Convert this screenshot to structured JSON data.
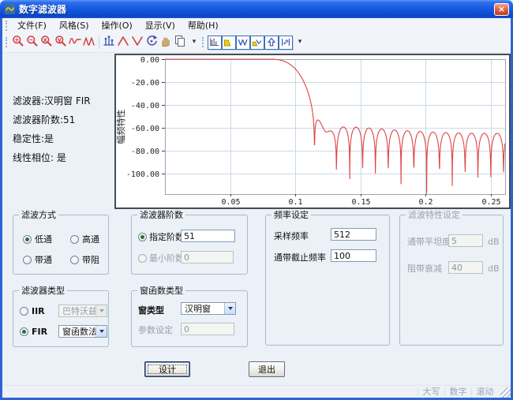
{
  "window": {
    "title": "数字滤波器",
    "close_glyph": "×"
  },
  "menu": {
    "items": [
      "文件(F)",
      "风格(S)",
      "操作(O)",
      "显示(V)",
      "帮助(H)"
    ]
  },
  "toolbar": {
    "group1": [
      {
        "name": "zoom-in"
      },
      {
        "name": "zoom-out"
      },
      {
        "name": "zoom-x"
      },
      {
        "name": "zoom-y"
      },
      {
        "name": "wave-cursor"
      },
      {
        "name": "wave-dual-cursor"
      },
      {
        "name": "stem-plot"
      },
      {
        "name": "peak-up"
      },
      {
        "name": "peak-down"
      },
      {
        "name": "rotate-view"
      },
      {
        "name": "pan-hand"
      },
      {
        "name": "copy-view"
      },
      {
        "name": "toolbar-more"
      }
    ],
    "group2": [
      {
        "name": "impulse-response"
      },
      {
        "name": "magnitude-response"
      },
      {
        "name": "phase-response"
      },
      {
        "name": "group-delay"
      },
      {
        "name": "export-up"
      },
      {
        "name": "coefficients"
      },
      {
        "name": "toolbar2-more"
      }
    ]
  },
  "info_panel": {
    "lines": [
      "滤波器:汉明窗 FIR",
      "滤波器阶数:51",
      "稳定性:是",
      "线性相位: 是"
    ]
  },
  "chart_data": {
    "type": "line",
    "title": "",
    "xlabel": "",
    "ylabel": "幅频特性",
    "x_ticks": [
      0.05,
      0.1,
      0.15,
      0.2,
      0.25
    ],
    "y_ticks": [
      0,
      -20,
      -40,
      -60,
      -80,
      -100
    ],
    "xlim": [
      0,
      0.261
    ],
    "ylim": [
      -118,
      0
    ],
    "grid": true,
    "line_color": "#e04343",
    "series": [
      {
        "name": "幅频特性(dB)",
        "description": "Magnitude response of order-51 Hamming-window FIR lowpass (fs=512 Hz, passband cutoff 100 Hz): flat at 0 dB to x≈0.095, steep transition x≈0.10-0.12, first stopband sidelobe ≈ -52 dB, lobe spacing ≈0.0098, lobe peaks decay to ≈ -75 dB at x=0.25, nulls reach -90 to -107 dB",
        "generator": {
          "taps": 52,
          "window": "hamming",
          "cutoff_axis": 0.0977,
          "axis_to_cycles": 2
        }
      }
    ]
  },
  "groups": {
    "filter_mode": {
      "title": "滤波方式",
      "options": [
        {
          "label": "低通",
          "selected": true
        },
        {
          "label": "高通",
          "selected": false
        },
        {
          "label": "带通",
          "selected": false
        },
        {
          "label": "带阻",
          "selected": false
        }
      ]
    },
    "filter_order": {
      "title": "滤波器阶数",
      "specified": {
        "label": "指定阶数",
        "selected": true,
        "value": "51"
      },
      "minimum": {
        "label": "最小阶数",
        "selected": false,
        "value": "0",
        "disabled": true
      }
    },
    "frequency": {
      "title": "频率设定",
      "sampling": {
        "label": "采样频率",
        "value": "512"
      },
      "cutoff": {
        "label": "通带截止频率",
        "value": "100"
      }
    },
    "characteristics": {
      "title": "滤波特性设定",
      "disabled": true,
      "flatness": {
        "label": "通带平坦度",
        "value": "5",
        "unit": "dB"
      },
      "attenuation": {
        "label": "阻带衰减",
        "value": "40",
        "unit": "dB"
      }
    },
    "filter_type": {
      "title": "滤波器类型",
      "iir": {
        "label": "IIR",
        "selected": false,
        "dropdown_value": "巴特沃兹",
        "disabled": true
      },
      "fir": {
        "label": "FIR",
        "selected": true,
        "dropdown_value": "窗函数法",
        "disabled": false
      }
    },
    "window_fn": {
      "title": "窗函数类型",
      "type": {
        "label": "窗类型",
        "dropdown_value": "汉明窗"
      },
      "param": {
        "label": "参数设定",
        "value": "0",
        "disabled": true
      }
    }
  },
  "buttons": {
    "design": "设计",
    "exit": "退出"
  },
  "statusbar": {
    "items": [
      "大写",
      "数字",
      "滚动"
    ]
  }
}
